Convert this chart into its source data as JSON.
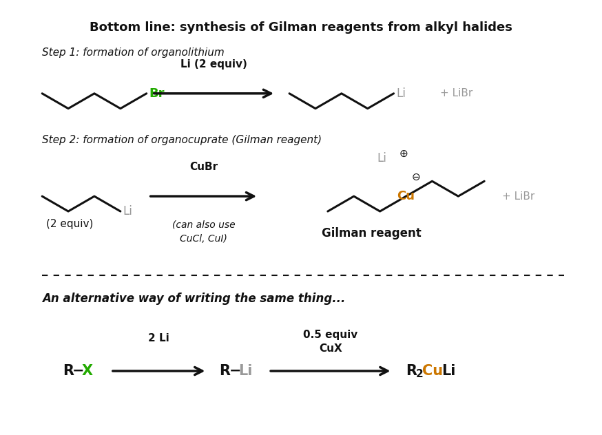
{
  "title": "Bottom line: synthesis of Gilman reagents from alkyl halides",
  "title_fontsize": 13,
  "title_fontweight": "bold",
  "bg_color": "#ffffff",
  "figsize": [
    8.74,
    6.32
  ],
  "dpi": 100,
  "black": "#111111",
  "green": "#22aa00",
  "gray": "#999999",
  "orange": "#cc7700",
  "step1_label": "Step 1: formation of organolithium",
  "step2_label": "Step 2: formation of organocuprate (Gilman reagent)",
  "alt_label": "An alternative way of writing the same thing..."
}
